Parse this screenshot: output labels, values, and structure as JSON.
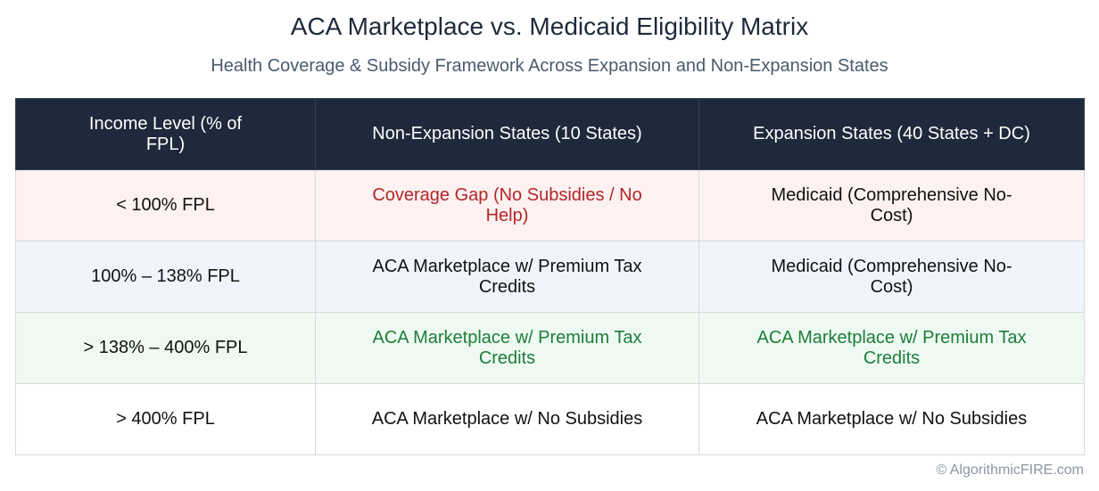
{
  "title": "ACA Marketplace vs. Medicaid Eligibility Matrix",
  "subtitle": "Health Coverage & Subsidy Framework Across Expansion and Non-Expansion States",
  "table": {
    "headers": [
      "Income Level (% of FPL)",
      "Non-Expansion States (10 States)",
      "Expansion States (40 States + DC)"
    ],
    "rows": [
      {
        "cells": [
          "< 100% FPL",
          "Coverage Gap (No Subsidies / No Help)",
          "Medicaid (Comprehensive No-Cost)"
        ]
      },
      {
        "cells": [
          "100% – 138% FPL",
          "ACA Marketplace w/ Premium Tax Credits",
          "Medicaid (Comprehensive No-Cost)"
        ]
      },
      {
        "cells": [
          "> 138% – 400% FPL",
          "ACA Marketplace w/ Premium Tax Credits",
          "ACA Marketplace w/ Premium Tax Credits"
        ]
      },
      {
        "cells": [
          "> 400% FPL",
          "ACA Marketplace w/ No Subsidies",
          "ACA Marketplace w/ No Subsidies"
        ]
      }
    ]
  },
  "colors": {
    "header_bg": "#1e293b",
    "row_red_bg": "#fdf1f1",
    "row_blue_bg": "#f0f5fd",
    "row_green_bg": "#eefaf1",
    "text_red": "#b3262a",
    "text_green": "#1f7d3a"
  },
  "footer": "© AlgorithmicFIRE.com"
}
